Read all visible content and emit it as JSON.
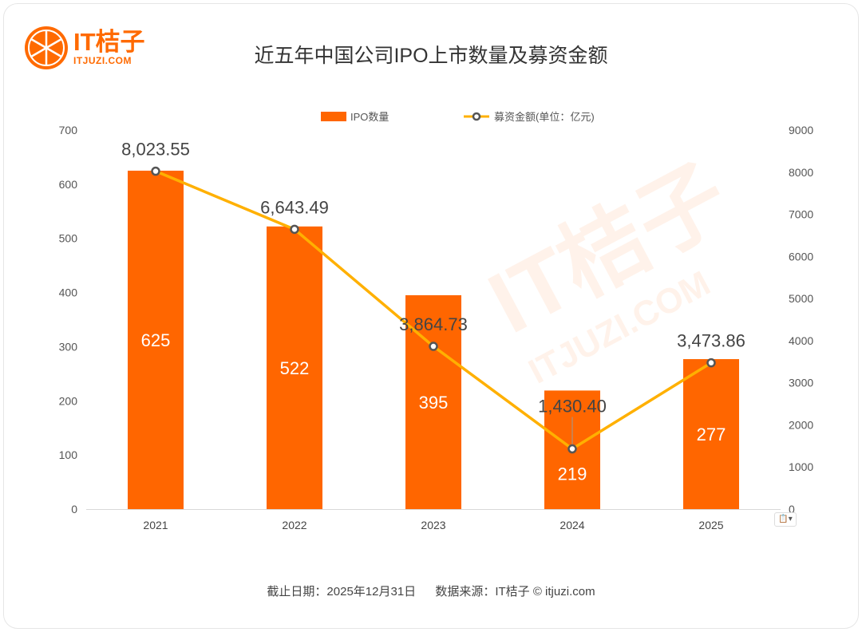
{
  "logo": {
    "name": "IT桔子",
    "url_text": "ITJUZI.COM"
  },
  "watermark": {
    "name": "IT桔子",
    "url_text": "ITJUZI.COM"
  },
  "chart_data": {
    "type": "bar+line",
    "title": "近五年中国公司IPO上市数量及募资金额",
    "categories": [
      "2021",
      "2022",
      "2023",
      "2024",
      "2025"
    ],
    "series": [
      {
        "name": "IPO数量",
        "type": "bar",
        "axis": "left",
        "color": "#ff6600",
        "values": [
          625,
          522,
          395,
          219,
          277
        ],
        "labels": [
          "625",
          "522",
          "395",
          "219",
          "277"
        ]
      },
      {
        "name": "募资金额(单位：亿元)",
        "type": "line",
        "axis": "right",
        "color": "#ffb000",
        "values": [
          8023.55,
          6643.49,
          3864.73,
          1430.4,
          3473.86
        ],
        "labels": [
          "8,023.55",
          "6,643.49",
          "3,864.73",
          "1,430.40",
          "3,473.86"
        ]
      }
    ],
    "y_left": {
      "lim": [
        0,
        700
      ],
      "ticks": [
        "0",
        "100",
        "200",
        "300",
        "400",
        "500",
        "600",
        "700"
      ]
    },
    "y_right": {
      "lim": [
        0,
        9000
      ],
      "ticks": [
        "0",
        "1000",
        "2000",
        "3000",
        "4000",
        "5000",
        "6000",
        "7000",
        "8000",
        "9000"
      ]
    },
    "grid": false,
    "legend": "top"
  },
  "footer": {
    "date": "截止日期：2025年12月31日",
    "source": "数据来源：IT桔子 © itjuzi.com"
  }
}
